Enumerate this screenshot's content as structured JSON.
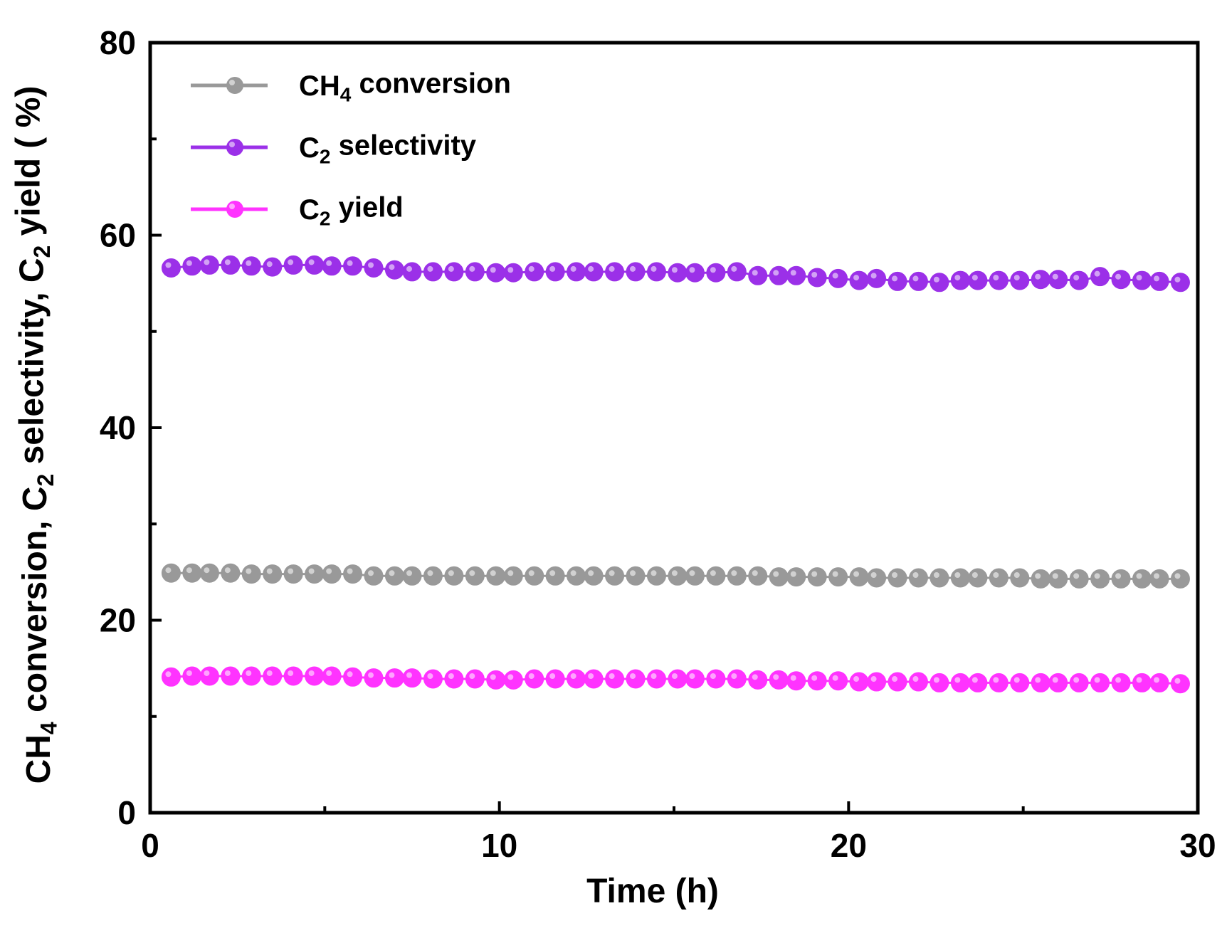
{
  "chart_data": {
    "type": "line",
    "title": "",
    "xlabel": "Time (h)",
    "ylabel": "CH4 conversion, C2 selectivity, C2 yield ( %)",
    "ylabel_parts": [
      "CH",
      "4",
      " conversion, C",
      "2",
      " selectivity, C",
      "2",
      " yield ( %)"
    ],
    "xlim": [
      0,
      30
    ],
    "ylim": [
      0,
      80
    ],
    "x_ticks": [
      0,
      10,
      20,
      30
    ],
    "x_tick_labels": [
      "0",
      "10",
      "20",
      "30"
    ],
    "y_ticks": [
      0,
      20,
      40,
      60,
      80
    ],
    "y_tick_labels": [
      "0",
      "20",
      "40",
      "60",
      "80"
    ],
    "grid": false,
    "legend_position": "top-left",
    "x": [
      0.6,
      1.2,
      1.7,
      2.3,
      2.9,
      3.5,
      4.1,
      4.7,
      5.2,
      5.8,
      6.4,
      7.0,
      7.5,
      8.1,
      8.7,
      9.3,
      9.9,
      10.4,
      11.0,
      11.6,
      12.2,
      12.7,
      13.3,
      13.9,
      14.5,
      15.1,
      15.6,
      16.2,
      16.8,
      17.4,
      18.0,
      18.5,
      19.1,
      19.7,
      20.3,
      20.8,
      21.4,
      22.0,
      22.6,
      23.2,
      23.7,
      24.3,
      24.9,
      25.5,
      26.0,
      26.6,
      27.2,
      27.8,
      28.4,
      28.9,
      29.5
    ],
    "series": [
      {
        "name": "CH4 conversion",
        "legend_parts": [
          "CH",
          "4",
          " conversion"
        ],
        "color": "#999999",
        "values": [
          24.9,
          24.9,
          24.9,
          24.9,
          24.8,
          24.8,
          24.8,
          24.8,
          24.8,
          24.8,
          24.6,
          24.6,
          24.6,
          24.6,
          24.6,
          24.6,
          24.6,
          24.6,
          24.6,
          24.6,
          24.6,
          24.6,
          24.6,
          24.6,
          24.6,
          24.6,
          24.6,
          24.6,
          24.6,
          24.6,
          24.5,
          24.5,
          24.5,
          24.5,
          24.5,
          24.4,
          24.4,
          24.4,
          24.4,
          24.4,
          24.4,
          24.4,
          24.4,
          24.3,
          24.3,
          24.3,
          24.3,
          24.3,
          24.3,
          24.3,
          24.3
        ]
      },
      {
        "name": "C2 selectivity",
        "legend_parts": [
          "C",
          "2",
          " selectivity"
        ],
        "color": "#9b30e8",
        "values": [
          56.6,
          56.8,
          56.9,
          56.9,
          56.8,
          56.7,
          56.9,
          56.9,
          56.8,
          56.8,
          56.6,
          56.4,
          56.2,
          56.2,
          56.2,
          56.2,
          56.1,
          56.1,
          56.2,
          56.2,
          56.2,
          56.2,
          56.2,
          56.2,
          56.2,
          56.1,
          56.1,
          56.1,
          56.2,
          55.8,
          55.8,
          55.8,
          55.6,
          55.5,
          55.3,
          55.5,
          55.2,
          55.2,
          55.1,
          55.3,
          55.3,
          55.3,
          55.3,
          55.4,
          55.4,
          55.3,
          55.7,
          55.4,
          55.3,
          55.2,
          55.1
        ]
      },
      {
        "name": "C2 yield",
        "legend_parts": [
          "C",
          "2",
          " yield"
        ],
        "color": "#ff33ff",
        "values": [
          14.1,
          14.2,
          14.2,
          14.2,
          14.2,
          14.2,
          14.2,
          14.2,
          14.2,
          14.1,
          14.0,
          14.0,
          14.0,
          13.9,
          13.9,
          13.9,
          13.8,
          13.8,
          13.9,
          13.9,
          13.9,
          13.9,
          13.9,
          13.9,
          13.9,
          13.9,
          13.9,
          13.9,
          13.9,
          13.8,
          13.8,
          13.7,
          13.7,
          13.7,
          13.6,
          13.6,
          13.6,
          13.6,
          13.5,
          13.5,
          13.5,
          13.5,
          13.5,
          13.5,
          13.5,
          13.5,
          13.5,
          13.5,
          13.5,
          13.5,
          13.4
        ]
      }
    ]
  }
}
